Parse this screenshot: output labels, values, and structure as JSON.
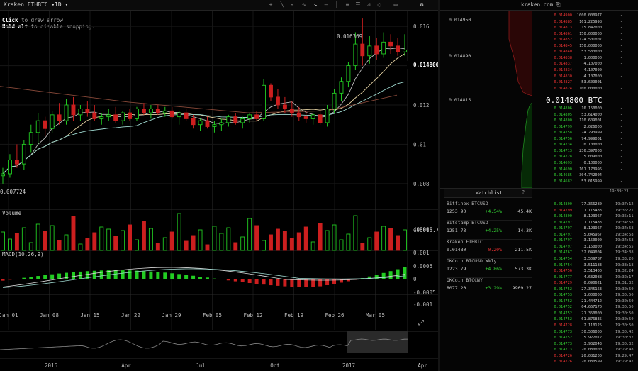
{
  "toolbar": {
    "market": "Kraken ETHBTC",
    "interval": "1D",
    "hint_line1_bold": "Click",
    "hint_line1_rest": " to draw arrow",
    "hint_line2_bold": "Hold alt",
    "hint_line2_rest": " to disable snapping.",
    "icons": [
      "crosshair-icon",
      "line-icon",
      "ray-icon",
      "curve-icon",
      "arrow-icon",
      "horizontal-line-icon",
      "vertical-line-icon",
      "parallel-lines-icon",
      "fib-fan-icon",
      "rectangle-icon",
      "circle-icon",
      "text-icon",
      "settings-icon"
    ]
  },
  "chart_data": [
    {
      "type": "candlestick",
      "title": "Kraken ETHBTC 1D",
      "y_ticks": [
        "0.016",
        "0.014",
        "0.012",
        "0.01",
        "0.008"
      ],
      "last_price_tag": "0.014800",
      "high_annotation": "0.016369",
      "low_annotation": "0.007724",
      "x_ticks": [
        "Jan 01",
        "Jan 08",
        "Jan 15",
        "Jan 22",
        "Jan 29",
        "Feb 05",
        "Feb 12",
        "Feb 19",
        "Feb 26",
        "Mar 05"
      ],
      "ylim": [
        0.0072,
        0.0168
      ],
      "candles": [
        [
          0.0084,
          0.0088,
          0.008,
          0.0085
        ],
        [
          0.0085,
          0.0095,
          0.0083,
          0.0092
        ],
        [
          0.0092,
          0.01,
          0.0088,
          0.009
        ],
        [
          0.009,
          0.0102,
          0.0087,
          0.01
        ],
        [
          0.01,
          0.011,
          0.0096,
          0.0106
        ],
        [
          0.0106,
          0.0116,
          0.01,
          0.0112
        ],
        [
          0.0112,
          0.0114,
          0.0104,
          0.0108
        ],
        [
          0.0108,
          0.0117,
          0.0106,
          0.0115
        ],
        [
          0.0115,
          0.0121,
          0.011,
          0.0112
        ],
        [
          0.0112,
          0.0123,
          0.011,
          0.012
        ],
        [
          0.012,
          0.0124,
          0.0112,
          0.0115
        ],
        [
          0.0115,
          0.012,
          0.0112,
          0.0118
        ],
        [
          0.0118,
          0.0122,
          0.0114,
          0.0116
        ],
        [
          0.0116,
          0.012,
          0.0112,
          0.0113
        ],
        [
          0.0113,
          0.0116,
          0.011,
          0.0114
        ],
        [
          0.0114,
          0.0118,
          0.0112,
          0.0115
        ],
        [
          0.0115,
          0.0119,
          0.0111,
          0.0112
        ],
        [
          0.0112,
          0.0117,
          0.011,
          0.0116
        ],
        [
          0.0116,
          0.0118,
          0.0112,
          0.0113
        ],
        [
          0.0113,
          0.0119,
          0.0112,
          0.0118
        ],
        [
          0.0118,
          0.0121,
          0.0115,
          0.0116
        ],
        [
          0.0116,
          0.012,
          0.0113,
          0.0118
        ],
        [
          0.0118,
          0.012,
          0.0115,
          0.0116
        ],
        [
          0.0116,
          0.0119,
          0.0114,
          0.0117
        ],
        [
          0.0117,
          0.0119,
          0.0113,
          0.0114
        ],
        [
          0.0114,
          0.0117,
          0.011,
          0.0116
        ],
        [
          0.0116,
          0.0118,
          0.0112,
          0.0113
        ],
        [
          0.0113,
          0.0115,
          0.0108,
          0.011
        ],
        [
          0.011,
          0.0113,
          0.0107,
          0.0112
        ],
        [
          0.0112,
          0.0114,
          0.0108,
          0.0109
        ],
        [
          0.0109,
          0.0112,
          0.0106,
          0.011
        ],
        [
          0.011,
          0.0113,
          0.0107,
          0.0111
        ],
        [
          0.0111,
          0.0115,
          0.0109,
          0.0114
        ],
        [
          0.0114,
          0.0116,
          0.011,
          0.0111
        ],
        [
          0.0111,
          0.0114,
          0.0108,
          0.0113
        ],
        [
          0.0113,
          0.0116,
          0.0111,
          0.0115
        ],
        [
          0.0115,
          0.0117,
          0.0112,
          0.0113
        ],
        [
          0.0113,
          0.0133,
          0.0112,
          0.013
        ],
        [
          0.013,
          0.0131,
          0.0122,
          0.0124
        ],
        [
          0.0124,
          0.0128,
          0.0118,
          0.012
        ],
        [
          0.012,
          0.0124,
          0.0116,
          0.0118
        ],
        [
          0.0118,
          0.0122,
          0.0114,
          0.0116
        ],
        [
          0.0116,
          0.0119,
          0.0112,
          0.0114
        ],
        [
          0.0114,
          0.0117,
          0.0111,
          0.0113
        ],
        [
          0.0113,
          0.0116,
          0.011,
          0.0115
        ],
        [
          0.0115,
          0.0118,
          0.011,
          0.0111
        ],
        [
          0.0111,
          0.012,
          0.0109,
          0.0118
        ],
        [
          0.0118,
          0.0128,
          0.0116,
          0.0126
        ],
        [
          0.0126,
          0.0134,
          0.0122,
          0.0132
        ],
        [
          0.0132,
          0.0142,
          0.0129,
          0.014
        ],
        [
          0.014,
          0.0157,
          0.0138,
          0.0151
        ],
        [
          0.0151,
          0.0164,
          0.014,
          0.0145
        ],
        [
          0.0145,
          0.0155,
          0.0141,
          0.015
        ],
        [
          0.015,
          0.0154,
          0.0143,
          0.0146
        ],
        [
          0.0146,
          0.0157,
          0.0144,
          0.0152
        ],
        [
          0.0152,
          0.0156,
          0.0146,
          0.015
        ],
        [
          0.015,
          0.0154,
          0.0145,
          0.0147
        ],
        [
          0.0147,
          0.0156,
          0.0145,
          0.0148
        ]
      ]
    },
    {
      "type": "bar",
      "title": "Volume",
      "y_ticks": [
        "400000"
      ],
      "last_value_tag": "195016.73"
    },
    {
      "type": "histogram",
      "title": "MACD(10,26,9)",
      "y_ticks": [
        "0.001",
        "0.0005",
        "0",
        "-0.0005",
        "-0.001"
      ]
    },
    {
      "type": "area",
      "title": "Navigator",
      "x_ticks": [
        "2016",
        "Apr",
        "Jul",
        "Oct",
        "2017",
        "Apr"
      ]
    }
  ],
  "orderbook": {
    "header": "kraken.com",
    "axis_ticks": [
      "0.014950",
      "0.014890",
      "0.014815"
    ],
    "mid_price": "0.014800 BTC",
    "asks": [
      {
        "price": "0.014900",
        "size": "1000.000977",
        "col": "-"
      },
      {
        "price": "0.014885",
        "size": "161.225998",
        "col": "-"
      },
      {
        "price": "0.014873",
        "size": "15.842000",
        "col": "-"
      },
      {
        "price": "0.014861",
        "size": "150.000000",
        "col": "-"
      },
      {
        "price": "0.014852",
        "size": "174.501007",
        "col": "-"
      },
      {
        "price": "0.014845",
        "size": "150.000000",
        "col": "-"
      },
      {
        "price": "0.014840",
        "size": "53.583000",
        "col": "-"
      },
      {
        "price": "0.014838",
        "size": "1.000000",
        "col": "-"
      },
      {
        "price": "0.014837",
        "size": "4.107000",
        "col": "-"
      },
      {
        "price": "0.014834",
        "size": "4.107000",
        "col": "-"
      },
      {
        "price": "0.014830",
        "size": "4.107000",
        "col": "-"
      },
      {
        "price": "0.014827",
        "size": "53.609001",
        "col": "-"
      },
      {
        "price": "0.014824",
        "size": "100.000000",
        "col": "-"
      }
    ],
    "bids": [
      {
        "price": "0.014806",
        "size": "16.150000",
        "col": "-"
      },
      {
        "price": "0.014805",
        "size": "53.614000",
        "col": "-"
      },
      {
        "price": "0.014800",
        "size": "110.609001",
        "col": "-"
      },
      {
        "price": "0.014799",
        "size": "2.026000",
        "col": "-"
      },
      {
        "price": "0.014758",
        "size": "74.293999",
        "col": "-"
      },
      {
        "price": "0.014756",
        "size": "74.999001",
        "col": "-"
      },
      {
        "price": "0.014734",
        "size": "0.100000",
        "col": "-"
      },
      {
        "price": "0.014713",
        "size": "236.397003",
        "col": "-"
      },
      {
        "price": "0.014728",
        "size": "5.009000",
        "col": "-"
      },
      {
        "price": "0.014693",
        "size": "0.100000",
        "col": "-"
      },
      {
        "price": "0.014690",
        "size": "161.173996",
        "col": "-"
      },
      {
        "price": "0.014685",
        "size": "304.742004",
        "col": "-"
      },
      {
        "price": "0.014682",
        "size": "53.015999",
        "col": "-"
      }
    ],
    "status_time": "19:39:23"
  },
  "watchlist": {
    "title": "Watchlist",
    "items": [
      {
        "name": "Bitfinex BTCUSD",
        "last": "1253.90",
        "change": "+4.54%",
        "volume": "45.4K",
        "dir": "pos"
      },
      {
        "name": "Bitstamp BTCUSD",
        "last": "1251.73",
        "change": "+4.25%",
        "volume": "14.3K",
        "dir": "pos"
      },
      {
        "name": "Kraken ETHBTC",
        "last": "0.01480",
        "change": "-0.20%",
        "volume": "211.5K",
        "dir": "neg"
      },
      {
        "name": "OKCoin BTCUSD Wkly",
        "last": "1223.79",
        "change": "+4.86%",
        "volume": "573.3K",
        "dir": "pos"
      },
      {
        "name": "OKCoin BTCCNY",
        "last": "8077.20",
        "change": "+3.29%",
        "volume": "9969.27",
        "dir": "pos"
      }
    ]
  },
  "trades": [
    {
      "price": "0.014800",
      "size": "77.366280",
      "time": "19:37:12",
      "dir": "pos"
    },
    {
      "price": "0.014799",
      "size": "1.115483",
      "time": "19:36:21",
      "dir": "neg"
    },
    {
      "price": "0.014800",
      "size": "8.193967",
      "time": "19:35:11",
      "dir": "pos"
    },
    {
      "price": "0.014797",
      "size": "1.115483",
      "time": "19:34:58",
      "dir": "pos"
    },
    {
      "price": "0.014797",
      "size": "8.193967",
      "time": "19:34:58",
      "dir": "pos"
    },
    {
      "price": "0.014797",
      "size": "5.045967",
      "time": "19:34:58",
      "dir": "pos"
    },
    {
      "price": "0.014797",
      "size": "3.150000",
      "time": "19:34:58",
      "dir": "pos"
    },
    {
      "price": "0.014797",
      "size": "3.150000",
      "time": "19:34:55",
      "dir": "pos"
    },
    {
      "price": "0.014767",
      "size": "32.049004",
      "time": "19:34:38",
      "dir": "pos"
    },
    {
      "price": "0.014754",
      "size": "3.509787",
      "time": "19:33:20",
      "dir": "pos"
    },
    {
      "price": "0.014754",
      "size": "3.511183",
      "time": "19:33:18",
      "dir": "pos"
    },
    {
      "price": "0.014756",
      "size": "3.513400",
      "time": "19:32:24",
      "dir": "neg"
    },
    {
      "price": "0.014777",
      "size": "4.632088",
      "time": "19:32:17",
      "dir": "pos"
    },
    {
      "price": "0.014729",
      "size": "0.090621",
      "time": "19:31:32",
      "dir": "neg"
    },
    {
      "price": "0.014752",
      "size": "27.345163",
      "time": "19:30:50",
      "dir": "pos"
    },
    {
      "price": "0.014753",
      "size": "1.000000",
      "time": "19:30:50",
      "dir": "pos"
    },
    {
      "price": "0.014752",
      "size": "21.444712",
      "time": "19:30:50",
      "dir": "pos"
    },
    {
      "price": "0.014752",
      "size": "64.667170",
      "time": "19:30:50",
      "dir": "pos"
    },
    {
      "price": "0.014752",
      "size": "21.350000",
      "time": "19:30:50",
      "dir": "pos"
    },
    {
      "price": "0.014752",
      "size": "61.876835",
      "time": "19:30:50",
      "dir": "pos"
    },
    {
      "price": "0.014728",
      "size": "2.110125",
      "time": "19:30:50",
      "dir": "neg"
    },
    {
      "price": "0.014773",
      "size": "30.506000",
      "time": "19:30:42",
      "dir": "pos"
    },
    {
      "price": "0.014752",
      "size": "5.922072",
      "time": "19:30:32",
      "dir": "pos"
    },
    {
      "price": "0.014773",
      "size": "3.932043",
      "time": "19:30:32",
      "dir": "pos"
    },
    {
      "price": "0.014773",
      "size": "20.080000",
      "time": "19:29:48",
      "dir": "pos"
    },
    {
      "price": "0.014726",
      "size": "20.081200",
      "time": "19:29:47",
      "dir": "neg"
    },
    {
      "price": "0.014726",
      "size": "20.080599",
      "time": "19:29:47",
      "dir": "neg"
    }
  ],
  "colors": {
    "up": "#22cc22",
    "down": "#cc1f1f",
    "background": "#000000",
    "accent": "#ffffff"
  }
}
